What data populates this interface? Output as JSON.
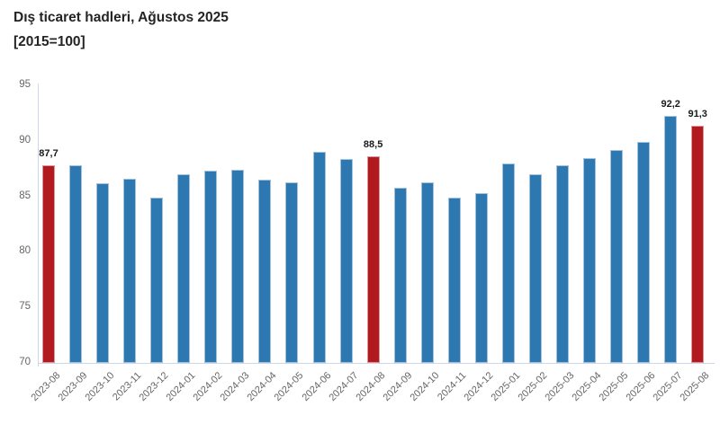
{
  "title": {
    "line1": "Dış ticaret hadleri, Ağustos 2025",
    "line2": "[2015=100]"
  },
  "chart_data": {
    "type": "bar",
    "title": "Dış ticaret hadleri, Ağustos 2025",
    "subtitle": "[2015=100]",
    "categories": [
      "2023-08",
      "2023-09",
      "2023-10",
      "2023-11",
      "2023-12",
      "2024-01",
      "2024-02",
      "2024-03",
      "2024-04",
      "2024-05",
      "2024-06",
      "2024-07",
      "2024-08",
      "2024-09",
      "2024-10",
      "2024-11",
      "2024-12",
      "2025-01",
      "2025-02",
      "2025-03",
      "2025-04",
      "2025-05",
      "2025-06",
      "2025-07",
      "2025-08"
    ],
    "values": [
      87.7,
      87.7,
      86.1,
      86.5,
      84.8,
      86.9,
      87.2,
      87.3,
      86.4,
      86.2,
      88.9,
      88.3,
      88.5,
      85.7,
      86.2,
      84.8,
      85.2,
      87.9,
      86.9,
      87.7,
      88.4,
      89.1,
      89.8,
      92.2,
      91.3
    ],
    "point_labels": {
      "0": "87,7",
      "12": "88,5",
      "23": "92,2",
      "24": "91,3"
    },
    "highlight_indices": [
      0,
      12,
      24
    ],
    "xlabel": "",
    "ylabel": "",
    "ylim": [
      70,
      95
    ],
    "yticks": [
      70,
      75,
      80,
      85,
      90,
      95
    ],
    "grid": false,
    "legend": "none",
    "decimal_separator": ",",
    "colors": {
      "bar": "#2e78b2",
      "highlight_bar": "#b11a1f",
      "axis_line": "#ccd6eb",
      "tick_label": "#666666",
      "data_label": "#1a1a1a",
      "title_text": "#242424"
    }
  }
}
